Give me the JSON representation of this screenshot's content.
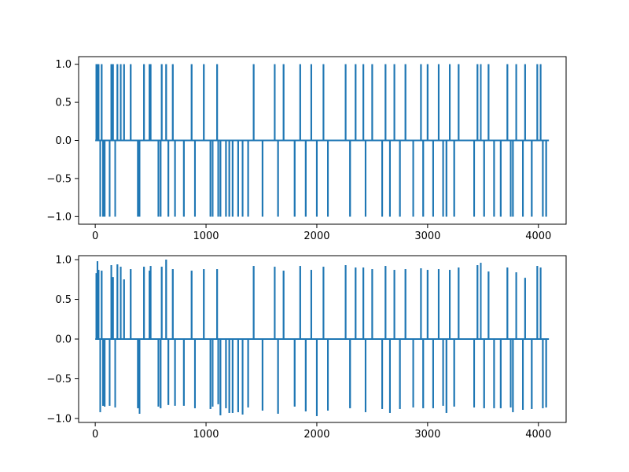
{
  "figure": {
    "background": "#ffffff",
    "line_color": "#1f77b4",
    "axis_color": "#000000"
  },
  "chart_data": [
    {
      "type": "line",
      "panel": "top",
      "xlim": [
        -150,
        4250
      ],
      "ylim": [
        -1.1,
        1.1
      ],
      "x_ticks": [
        0,
        1000,
        2000,
        3000,
        4000
      ],
      "x_tick_labels": [
        "0",
        "1000",
        "2000",
        "3000",
        "4000"
      ],
      "y_ticks": [
        -1.0,
        -0.5,
        0.0,
        0.5,
        1.0
      ],
      "y_tick_labels": [
        "−1.0",
        "−0.5",
        "0.0",
        "0.5",
        "1.0"
      ],
      "grid": false,
      "series": [
        {
          "x_range": [
            0,
            4095
          ],
          "baseline": 0.0,
          "spikes": [
            [
              10,
              1
            ],
            [
              20,
              1
            ],
            [
              30,
              1
            ],
            [
              45,
              -1
            ],
            [
              58,
              1
            ],
            [
              70,
              -1
            ],
            [
              85,
              -1
            ],
            [
              130,
              -1
            ],
            [
              145,
              1
            ],
            [
              160,
              1
            ],
            [
              180,
              -1
            ],
            [
              200,
              1
            ],
            [
              230,
              1
            ],
            [
              260,
              1
            ],
            [
              320,
              1
            ],
            [
              385,
              -1
            ],
            [
              400,
              -1
            ],
            [
              440,
              1
            ],
            [
              490,
              1
            ],
            [
              500,
              1
            ],
            [
              570,
              -1
            ],
            [
              590,
              -1
            ],
            [
              600,
              1
            ],
            [
              640,
              1
            ],
            [
              660,
              -1
            ],
            [
              700,
              1
            ],
            [
              720,
              -1
            ],
            [
              800,
              -1
            ],
            [
              870,
              1
            ],
            [
              900,
              -1
            ],
            [
              980,
              1
            ],
            [
              1040,
              -1
            ],
            [
              1060,
              -1
            ],
            [
              1100,
              1
            ],
            [
              1110,
              -1
            ],
            [
              1130,
              -1
            ],
            [
              1180,
              -1
            ],
            [
              1210,
              -1
            ],
            [
              1240,
              -1
            ],
            [
              1290,
              -1
            ],
            [
              1330,
              -1
            ],
            [
              1380,
              -1
            ],
            [
              1430,
              1
            ],
            [
              1510,
              -1
            ],
            [
              1620,
              1
            ],
            [
              1650,
              -1
            ],
            [
              1700,
              1
            ],
            [
              1800,
              -1
            ],
            [
              1850,
              1
            ],
            [
              1900,
              -1
            ],
            [
              1950,
              1
            ],
            [
              2000,
              -1
            ],
            [
              2060,
              1
            ],
            [
              2100,
              -1
            ],
            [
              2260,
              1
            ],
            [
              2300,
              -1
            ],
            [
              2350,
              1
            ],
            [
              2420,
              1
            ],
            [
              2440,
              -1
            ],
            [
              2500,
              1
            ],
            [
              2590,
              -1
            ],
            [
              2620,
              1
            ],
            [
              2660,
              -1
            ],
            [
              2700,
              1
            ],
            [
              2750,
              -1
            ],
            [
              2800,
              1
            ],
            [
              2870,
              -1
            ],
            [
              2940,
              1
            ],
            [
              2960,
              -1
            ],
            [
              3000,
              1
            ],
            [
              3050,
              -1
            ],
            [
              3100,
              1
            ],
            [
              3140,
              -1
            ],
            [
              3170,
              -1
            ],
            [
              3200,
              1
            ],
            [
              3240,
              -1
            ],
            [
              3280,
              1
            ],
            [
              3420,
              -1
            ],
            [
              3450,
              1
            ],
            [
              3480,
              1
            ],
            [
              3510,
              -1
            ],
            [
              3550,
              1
            ],
            [
              3600,
              -1
            ],
            [
              3660,
              -1
            ],
            [
              3720,
              1
            ],
            [
              3750,
              -1
            ],
            [
              3770,
              -1
            ],
            [
              3800,
              1
            ],
            [
              3860,
              -1
            ],
            [
              3880,
              1
            ],
            [
              3940,
              -1
            ],
            [
              3990,
              1
            ],
            [
              4020,
              1
            ],
            [
              4040,
              -1
            ],
            [
              4070,
              -1
            ]
          ]
        }
      ]
    },
    {
      "type": "line",
      "panel": "bottom",
      "xlim": [
        -150,
        4250
      ],
      "ylim": [
        -1.05,
        1.05
      ],
      "x_ticks": [
        0,
        1000,
        2000,
        3000,
        4000
      ],
      "x_tick_labels": [
        "0",
        "1000",
        "2000",
        "3000",
        "4000"
      ],
      "y_ticks": [
        -1.0,
        -0.5,
        0.0,
        0.5,
        1.0
      ],
      "y_tick_labels": [
        "−1.0",
        "−0.5",
        "0.0",
        "0.5",
        "1.0"
      ],
      "grid": false,
      "series": [
        {
          "x_range": [
            0,
            4095
          ],
          "baseline": 0.0,
          "spikes": [
            [
              10,
              0.83
            ],
            [
              20,
              0.98
            ],
            [
              30,
              0.87
            ],
            [
              45,
              -0.92
            ],
            [
              58,
              0.86
            ],
            [
              70,
              -0.84
            ],
            [
              85,
              -0.85
            ],
            [
              130,
              -0.84
            ],
            [
              145,
              0.93
            ],
            [
              160,
              0.78
            ],
            [
              180,
              -0.86
            ],
            [
              200,
              0.94
            ],
            [
              230,
              0.91
            ],
            [
              260,
              0.75
            ],
            [
              320,
              0.88
            ],
            [
              385,
              -0.87
            ],
            [
              400,
              -0.94
            ],
            [
              440,
              0.91
            ],
            [
              490,
              0.86
            ],
            [
              500,
              0.92
            ],
            [
              570,
              -0.85
            ],
            [
              590,
              -0.87
            ],
            [
              600,
              0.91
            ],
            [
              640,
              1.0
            ],
            [
              660,
              -0.83
            ],
            [
              700,
              0.88
            ],
            [
              720,
              -0.84
            ],
            [
              800,
              -0.84
            ],
            [
              870,
              0.86
            ],
            [
              900,
              -0.87
            ],
            [
              980,
              0.88
            ],
            [
              1040,
              -0.88
            ],
            [
              1060,
              -0.85
            ],
            [
              1100,
              0.88
            ],
            [
              1110,
              -0.82
            ],
            [
              1130,
              -0.96
            ],
            [
              1180,
              -0.87
            ],
            [
              1210,
              -0.93
            ],
            [
              1240,
              -0.93
            ],
            [
              1290,
              -0.92
            ],
            [
              1330,
              -0.95
            ],
            [
              1380,
              -0.86
            ],
            [
              1430,
              0.92
            ],
            [
              1510,
              -0.9
            ],
            [
              1620,
              0.91
            ],
            [
              1650,
              -0.94
            ],
            [
              1700,
              0.86
            ],
            [
              1800,
              -0.85
            ],
            [
              1850,
              0.92
            ],
            [
              1900,
              -0.91
            ],
            [
              1950,
              0.87
            ],
            [
              2000,
              -0.97
            ],
            [
              2060,
              0.91
            ],
            [
              2100,
              -0.9
            ],
            [
              2260,
              0.93
            ],
            [
              2300,
              -0.87
            ],
            [
              2350,
              0.9
            ],
            [
              2420,
              0.9
            ],
            [
              2440,
              -0.92
            ],
            [
              2500,
              0.88
            ],
            [
              2590,
              -0.88
            ],
            [
              2620,
              0.92
            ],
            [
              2660,
              -0.93
            ],
            [
              2700,
              0.87
            ],
            [
              2750,
              -0.88
            ],
            [
              2800,
              0.88
            ],
            [
              2870,
              -0.86
            ],
            [
              2940,
              0.89
            ],
            [
              2960,
              -0.87
            ],
            [
              3000,
              0.87
            ],
            [
              3050,
              -0.87
            ],
            [
              3100,
              0.88
            ],
            [
              3140,
              -0.84
            ],
            [
              3170,
              -0.93
            ],
            [
              3200,
              0.87
            ],
            [
              3240,
              -0.85
            ],
            [
              3280,
              0.9
            ],
            [
              3420,
              -0.86
            ],
            [
              3450,
              0.93
            ],
            [
              3480,
              0.96
            ],
            [
              3510,
              -0.87
            ],
            [
              3550,
              0.85
            ],
            [
              3600,
              -0.87
            ],
            [
              3660,
              -0.87
            ],
            [
              3720,
              0.9
            ],
            [
              3750,
              -0.86
            ],
            [
              3770,
              -0.92
            ],
            [
              3800,
              0.84
            ],
            [
              3860,
              -0.89
            ],
            [
              3880,
              0.77
            ],
            [
              3940,
              -0.88
            ],
            [
              3990,
              0.92
            ],
            [
              4020,
              0.9
            ],
            [
              4040,
              -0.87
            ],
            [
              4070,
              -0.86
            ]
          ]
        }
      ]
    }
  ]
}
